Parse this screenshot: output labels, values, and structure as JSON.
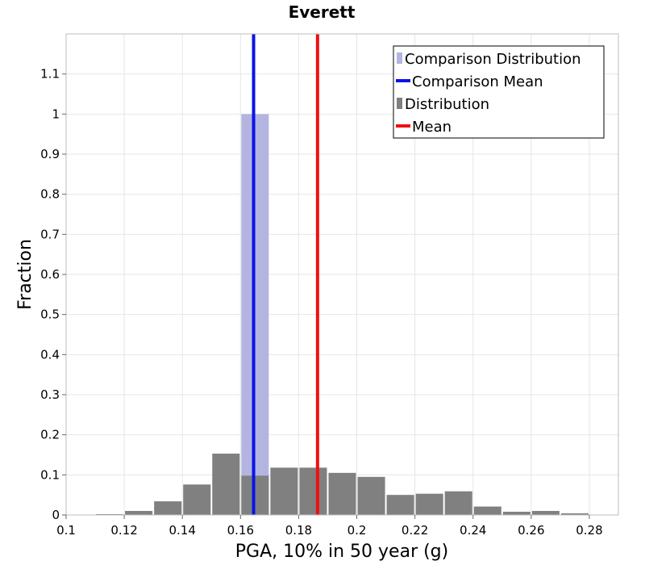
{
  "chart_data": {
    "type": "bar",
    "title": "Everett",
    "xlabel": "PGA, 10% in 50 year (g)",
    "ylabel": "Fraction",
    "xlim": [
      0.1,
      0.29
    ],
    "ylim": [
      0,
      1.2
    ],
    "xticks": [
      "0.1",
      "0.12",
      "0.14",
      "0.16",
      "0.18",
      "0.2",
      "0.22",
      "0.24",
      "0.26",
      "0.28"
    ],
    "yticks": [
      "0",
      "0.1",
      "0.2",
      "0.3",
      "0.4",
      "0.5",
      "0.6",
      "0.7",
      "0.8",
      "0.9",
      "1",
      "1.1"
    ],
    "grid": true,
    "legend_position": "top-right",
    "bin_width": 0.01,
    "series": [
      {
        "name": "Comparison Distribution",
        "kind": "histogram",
        "color": "#b3b5e0",
        "bins": [
          {
            "x": 0.165,
            "y": 1.0
          }
        ]
      },
      {
        "name": "Distribution",
        "kind": "histogram",
        "color": "#808080",
        "bins": [
          {
            "x": 0.115,
            "y": 0.002
          },
          {
            "x": 0.125,
            "y": 0.01
          },
          {
            "x": 0.135,
            "y": 0.034
          },
          {
            "x": 0.145,
            "y": 0.076
          },
          {
            "x": 0.155,
            "y": 0.153
          },
          {
            "x": 0.165,
            "y": 0.098
          },
          {
            "x": 0.175,
            "y": 0.118
          },
          {
            "x": 0.185,
            "y": 0.118
          },
          {
            "x": 0.195,
            "y": 0.105
          },
          {
            "x": 0.205,
            "y": 0.095
          },
          {
            "x": 0.215,
            "y": 0.05
          },
          {
            "x": 0.225,
            "y": 0.053
          },
          {
            "x": 0.235,
            "y": 0.059
          },
          {
            "x": 0.245,
            "y": 0.021
          },
          {
            "x": 0.255,
            "y": 0.008
          },
          {
            "x": 0.265,
            "y": 0.01
          },
          {
            "x": 0.275,
            "y": 0.004
          }
        ]
      },
      {
        "name": "Comparison Mean",
        "kind": "vline",
        "color": "#0a14e6",
        "x": 0.1645
      },
      {
        "name": "Mean",
        "kind": "vline",
        "color": "#ef1010",
        "x": 0.1865
      }
    ],
    "legend": [
      {
        "label": "Comparison Distribution",
        "marker": "bar",
        "color": "#b3b5e0"
      },
      {
        "label": "Comparison Mean",
        "marker": "line",
        "color": "#0a14e6"
      },
      {
        "label": "Distribution",
        "marker": "bar",
        "color": "#808080"
      },
      {
        "label": "Mean",
        "marker": "line",
        "color": "#ef1010"
      }
    ]
  }
}
